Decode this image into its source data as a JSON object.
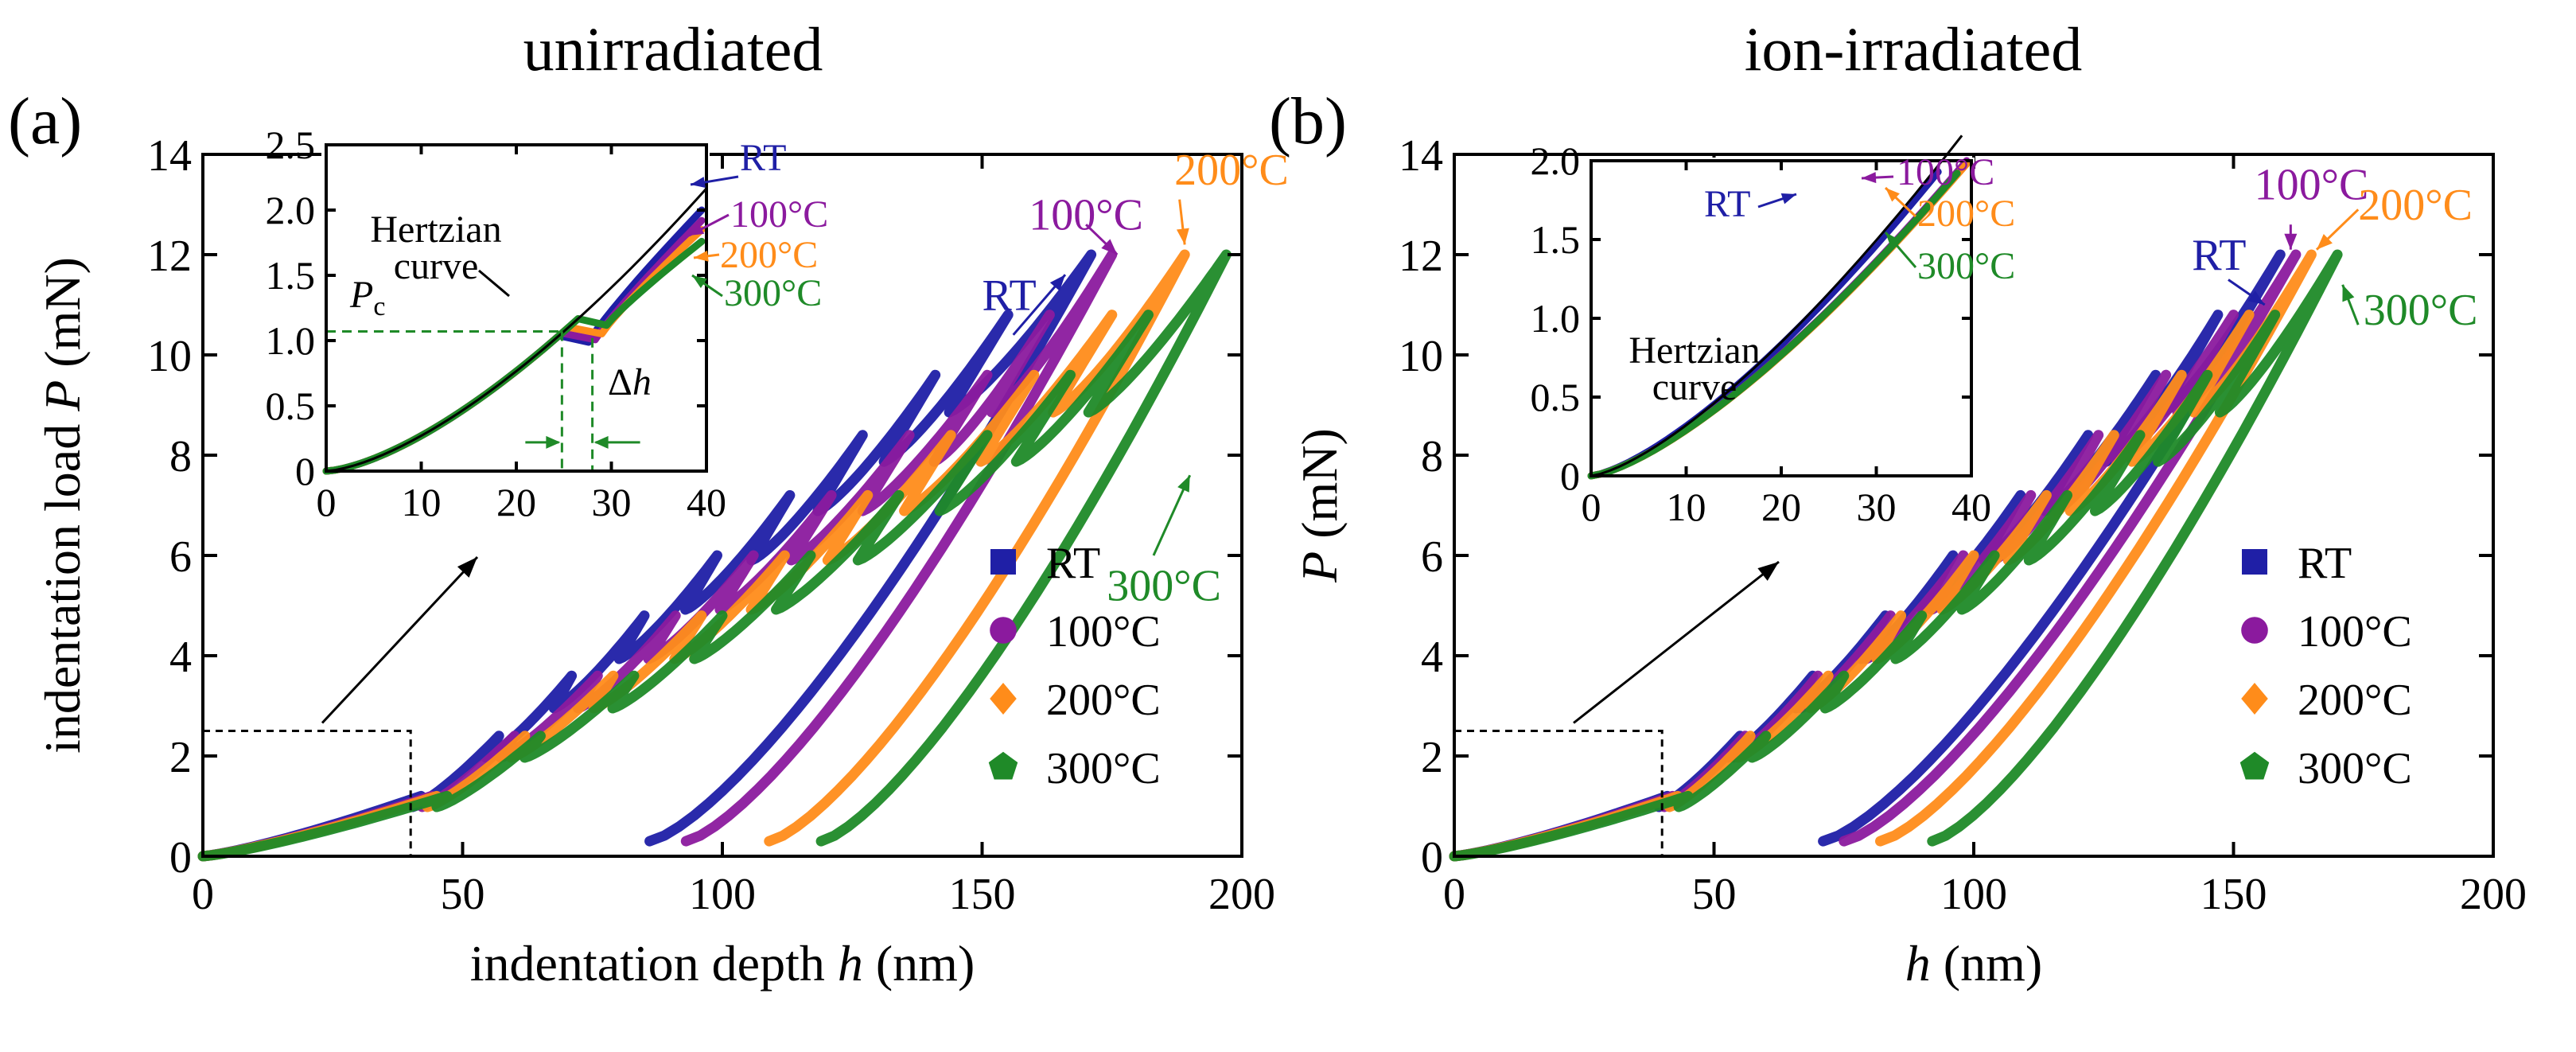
{
  "colors": {
    "RT": "#1f1fa6",
    "100C": "#8b1a9e",
    "200C": "#ff8c1a",
    "300C": "#1f8a28",
    "hertz": "#000000",
    "guide": "#1f8a28"
  },
  "chart_data": [
    {
      "id": "a",
      "type": "line",
      "panel_label": "(a)",
      "title": "unirradiated",
      "xlabel": "indentation depth h (nm)",
      "xlabel_parts": [
        "indentation depth ",
        "h",
        " (nm)"
      ],
      "ylabel": "indentation load P (mN)",
      "ylabel_parts": [
        "indentation load ",
        "P",
        " (mN)"
      ],
      "xlim": [
        0,
        200
      ],
      "ylim": [
        0,
        14
      ],
      "xticks": [
        "0",
        "50",
        "100",
        "150",
        "200"
      ],
      "yticks": [
        "0",
        "2",
        "4",
        "6",
        "8",
        "10",
        "12",
        "14"
      ],
      "legend": {
        "position": "lower-right",
        "entries": [
          {
            "label": "RT",
            "marker": "square",
            "color_key": "RT"
          },
          {
            "label": "100°C",
            "marker": "circle",
            "color_key": "100C"
          },
          {
            "label": "200°C",
            "marker": "diamond",
            "color_key": "200C"
          },
          {
            "label": "300°C",
            "marker": "pentagon",
            "color_key": "300C"
          }
        ]
      },
      "series": [
        {
          "name": "RT",
          "color_key": "RT",
          "pop_in": [
            27,
            1.3,
            35
          ],
          "peak_h": [
            42,
            57,
            71,
            85,
            99,
            113,
            127,
            141,
            155,
            171
          ],
          "unload_h": [
            33,
            43,
            52,
            58,
            65,
            72,
            79,
            86,
            92,
            86
          ],
          "h_max": 171,
          "unload_end_h": 86,
          "p_peak": 12
        },
        {
          "name": "100°C",
          "color_key": "100C",
          "pop_in": [
            28,
            1.3,
            36
          ],
          "peak_h": [
            44,
            60,
            76,
            91,
            106,
            121,
            136,
            151,
            163,
            175
          ],
          "unload_h": [
            34,
            45,
            55,
            62,
            70,
            78,
            86,
            94,
            101,
            93
          ],
          "h_max": 175,
          "unload_end_h": 93,
          "p_peak": 12
        },
        {
          "name": "200°C",
          "color_key": "200C",
          "pop_in": [
            28,
            1.35,
            36
          ],
          "peak_h": [
            45,
            62,
            79,
            96,
            112,
            128,
            144,
            160,
            175,
            189
          ],
          "unload_h": [
            35,
            47,
            58,
            67,
            76,
            85,
            94,
            103,
            112,
            109
          ],
          "h_max": 189,
          "unload_end_h": 109,
          "p_peak": 12
        },
        {
          "name": "300°C",
          "color_key": "300C",
          "pop_in": [
            29,
            1.3,
            37
          ],
          "peak_h": [
            47,
            65,
            83,
            100,
            117,
            134,
            151,
            167,
            182,
            197
          ],
          "unload_h": [
            36,
            48,
            60,
            70,
            80,
            90,
            100,
            109,
            118,
            119
          ],
          "h_max": 197,
          "unload_end_h": 119,
          "p_peak": 12
        }
      ],
      "annotations": [
        {
          "text": "RT",
          "h": 150,
          "p": 10.9,
          "color_key": "RT"
        },
        {
          "text": "100°C",
          "h": 159,
          "p": 12.5,
          "color_key": "100C"
        },
        {
          "text": "200°C",
          "h": 187,
          "p": 13.4,
          "color_key": "200C"
        },
        {
          "text": "300°C",
          "h": 174,
          "p": 5.1,
          "color_key": "300C"
        }
      ],
      "zoom_box": {
        "xlim": [
          0,
          40
        ],
        "ylim": [
          0,
          2.5
        ]
      },
      "inset": {
        "xlim": [
          0,
          40
        ],
        "ylim": [
          0,
          2.5
        ],
        "xticks": [
          "0",
          "10",
          "20",
          "30",
          "40"
        ],
        "yticks": [
          "0",
          "0.5",
          "1.0",
          "1.5",
          "2.0",
          "2.5"
        ],
        "hertzian_label": "Hertzian curve",
        "hertzian_lines": [
          "Hertzian",
          "curve"
        ],
        "pc_label": "Pc",
        "pc_parts": [
          "P",
          "c"
        ],
        "pc_value": 1.07,
        "dh_label": "Δh",
        "dh_parts": [
          "Δ",
          "h"
        ],
        "dh_from": 24.8,
        "dh_to": 28.0,
        "series_labels": [
          {
            "text": "RT",
            "color_key": "RT"
          },
          {
            "text": "100°C",
            "color_key": "100C"
          },
          {
            "text": "200°C",
            "color_key": "200C"
          },
          {
            "text": "300°C",
            "color_key": "300C"
          }
        ]
      }
    },
    {
      "id": "b",
      "type": "line",
      "panel_label": "(b)",
      "title": "ion-irradiated",
      "xlabel": "h (nm)",
      "xlabel_parts": [
        "",
        "h",
        " (nm)"
      ],
      "ylabel": "P (mN)",
      "ylabel_parts": [
        "",
        "P",
        " (mN)"
      ],
      "xlim": [
        0,
        200
      ],
      "ylim": [
        0,
        14
      ],
      "xticks": [
        "0",
        "50",
        "100",
        "150",
        "200"
      ],
      "yticks": [
        "0",
        "2",
        "4",
        "6",
        "8",
        "10",
        "12",
        "14"
      ],
      "legend": {
        "position": "lower-right",
        "entries": [
          {
            "label": "RT",
            "marker": "square",
            "color_key": "RT"
          },
          {
            "label": "100°C",
            "marker": "circle",
            "color_key": "100C"
          },
          {
            "label": "200°C",
            "marker": "diamond",
            "color_key": "200C"
          },
          {
            "label": "300°C",
            "marker": "pentagon",
            "color_key": "300C"
          }
        ]
      },
      "series": [
        {
          "name": "RT",
          "color_key": "RT",
          "peak_h": [
            41,
            55,
            69,
            83,
            96,
            109,
            122,
            135,
            147,
            159
          ],
          "unload_h": [
            32,
            42,
            51,
            57,
            63,
            70,
            76,
            82,
            88,
            71
          ],
          "h_max": 159,
          "unload_end_h": 71,
          "p_peak": 12
        },
        {
          "name": "100°C",
          "color_key": "100C",
          "peak_h": [
            42,
            56,
            70,
            84,
            98,
            111,
            124,
            137,
            150,
            162
          ],
          "unload_h": [
            33,
            43,
            52,
            58,
            64,
            71,
            78,
            84,
            90,
            75
          ],
          "h_max": 162,
          "unload_end_h": 75,
          "p_peak": 12
        },
        {
          "name": "200°C",
          "color_key": "200C",
          "peak_h": [
            43,
            57,
            72,
            86,
            100,
            114,
            127,
            140,
            153,
            165
          ],
          "unload_h": [
            34,
            44,
            53,
            60,
            66,
            73,
            80,
            87,
            94,
            82
          ],
          "h_max": 165,
          "unload_end_h": 82,
          "p_peak": 12
        },
        {
          "name": "300°C",
          "color_key": "300C",
          "peak_h": [
            45,
            60,
            75,
            90,
            104,
            118,
            132,
            145,
            158,
            170
          ],
          "unload_h": [
            35,
            45,
            55,
            62,
            69,
            77,
            84,
            92,
            99,
            92
          ],
          "h_max": 170,
          "unload_end_h": 92,
          "p_peak": 12
        }
      ],
      "annotations": [
        {
          "text": "RT",
          "h": 142,
          "p": 11.7,
          "color_key": "RT"
        },
        {
          "text": "100°C",
          "h": 154,
          "p": 13.1,
          "color_key": "100C"
        },
        {
          "text": "200°C",
          "h": 174,
          "p": 12.7,
          "color_key": "200C"
        },
        {
          "text": "300°C",
          "h": 175,
          "p": 10.6,
          "color_key": "300C"
        }
      ],
      "zoom_box": {
        "xlim": [
          0,
          40
        ],
        "ylim": [
          0,
          2.5
        ]
      },
      "inset": {
        "xlim": [
          0,
          40
        ],
        "ylim": [
          0,
          2.0
        ],
        "xticks": [
          "0",
          "10",
          "20",
          "30",
          "40"
        ],
        "yticks": [
          "0",
          "0.5",
          "1.0",
          "1.5",
          "2.0"
        ],
        "hertzian_label": "Hertzian curve",
        "hertzian_lines": [
          "Hertzian",
          "curve"
        ],
        "series_labels": [
          {
            "text": "RT",
            "color_key": "RT"
          },
          {
            "text": "100°C",
            "color_key": "100C"
          },
          {
            "text": "200°C",
            "color_key": "200C"
          },
          {
            "text": "300°C",
            "color_key": "300C"
          }
        ]
      }
    }
  ]
}
